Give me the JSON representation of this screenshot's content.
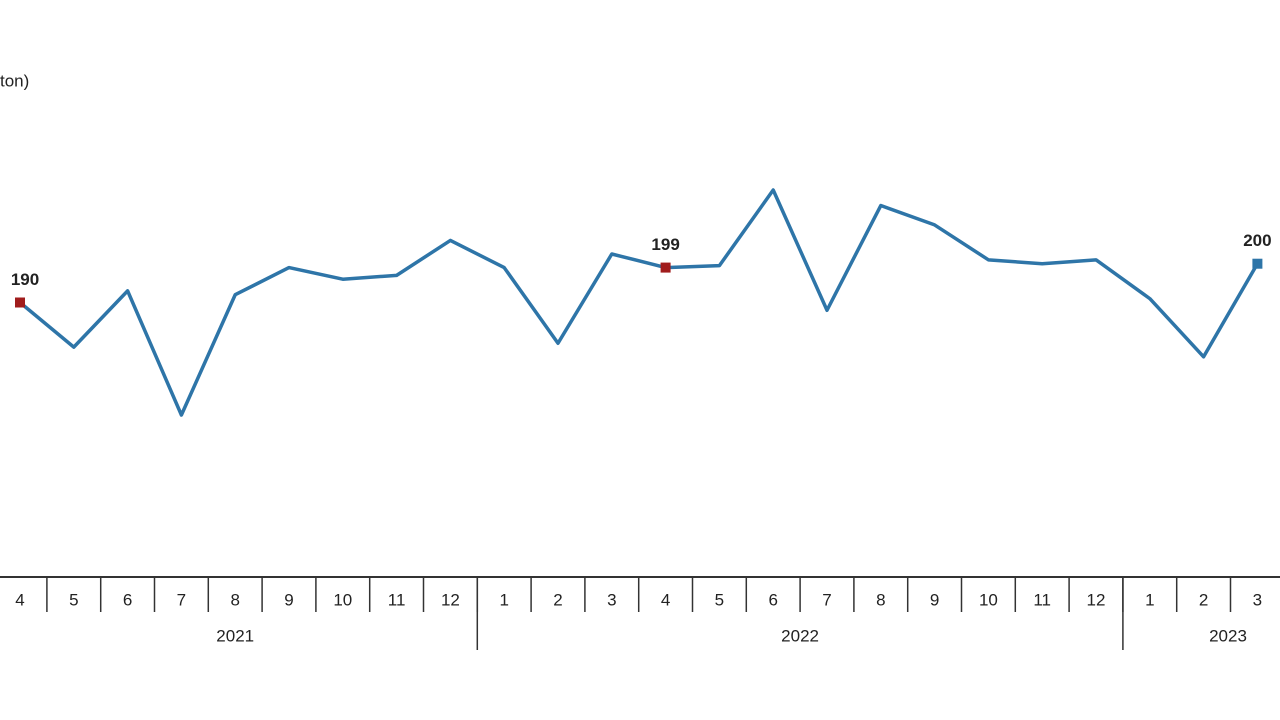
{
  "chart_data": {
    "type": "line",
    "unit_label": "ton)",
    "categories": [
      "4",
      "5",
      "6",
      "7",
      "8",
      "9",
      "10",
      "11",
      "12",
      "1",
      "2",
      "3",
      "4",
      "5",
      "6",
      "7",
      "8",
      "9",
      "10",
      "11",
      "12",
      "1",
      "2",
      "3"
    ],
    "groups": [
      {
        "label": "2021",
        "count": 9
      },
      {
        "label": "2022",
        "count": 12
      },
      {
        "label": "2023",
        "count": 3
      }
    ],
    "series": [
      {
        "color": "#2e75a8",
        "values": [
          190,
          178.5,
          193,
          161,
          192,
          199,
          196,
          197,
          206,
          199,
          179.5,
          202.5,
          199,
          199.5,
          219,
          188,
          215,
          210,
          201,
          200,
          201,
          191,
          176,
          200
        ]
      }
    ],
    "markers": [
      {
        "index": 0,
        "color": "#a01c1c"
      },
      {
        "index": 12,
        "color": "#a01c1c"
      },
      {
        "index": 23,
        "color": "#2e75a8"
      }
    ]
  }
}
